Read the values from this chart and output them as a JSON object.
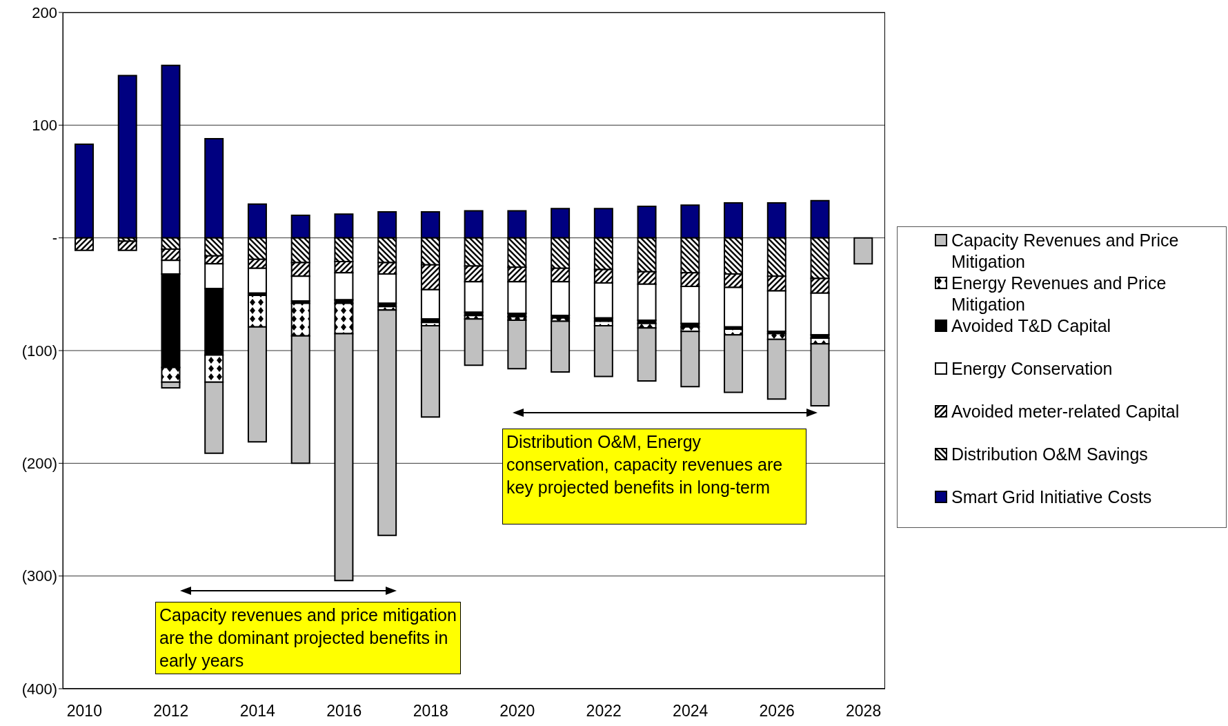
{
  "chart_data": {
    "type": "bar",
    "stacked": true,
    "categories": [
      "2010",
      null,
      "2012",
      null,
      "2014",
      null,
      "2016",
      null,
      "2018",
      null,
      "2020",
      null,
      "2022",
      null,
      "2024",
      null,
      "2026",
      null,
      "2028"
    ],
    "series": [
      {
        "name": "Smart Grid Initiative Costs",
        "color": "#000080",
        "values": [
          83,
          144,
          153,
          88,
          30,
          20,
          21,
          23,
          23,
          24,
          24,
          26,
          26,
          28,
          29,
          31,
          31,
          33,
          null
        ]
      },
      {
        "name": "Distribution O&M Savings",
        "color": "#000000",
        "values": [
          null,
          -3,
          -10,
          -16,
          -19,
          -22,
          -21,
          -22,
          -24,
          -25,
          -26,
          -27,
          -28,
          -30,
          -31,
          -32,
          -34,
          -36,
          null
        ]
      },
      {
        "name": "Avoided meter-related Capital",
        "color": "#000000",
        "values": [
          -11,
          -8,
          -10,
          -7,
          -8,
          -12,
          -10,
          -10,
          -22,
          -14,
          -13,
          -12,
          -12,
          -11,
          -12,
          -12,
          -13,
          -13,
          null
        ]
      },
      {
        "name": "Energy Conservation",
        "color": "#ffffff",
        "values": [
          null,
          null,
          -12,
          -22,
          -22,
          -22,
          -24,
          -26,
          -26,
          -27,
          -28,
          -30,
          -31,
          -32,
          -33,
          -35,
          -36,
          -37,
          null
        ]
      },
      {
        "name": "Avoided T&D Capital",
        "color": "#000000",
        "values": [
          null,
          null,
          -83,
          -59,
          -2,
          -2,
          -3,
          -3,
          -3,
          -3,
          -3,
          -2,
          -3,
          -3,
          -3,
          -2,
          -2,
          -3,
          null
        ]
      },
      {
        "name": "Energy Revenues and Price Mitigation",
        "color": "#000000",
        "values": [
          null,
          null,
          -13,
          -24,
          -28,
          -29,
          -27,
          -3,
          -3,
          -3,
          -3,
          -3,
          -4,
          -4,
          -4,
          -5,
          -5,
          -5,
          null
        ]
      },
      {
        "name": "Capacity Revenues and Price Mitigation",
        "color": "#c0c0c0",
        "values": [
          null,
          null,
          -5,
          -63,
          -102,
          -113,
          -219,
          -200,
          -81,
          -41,
          -43,
          -45,
          -45,
          -47,
          -49,
          -51,
          -53,
          -55,
          -23
        ]
      }
    ],
    "ylim": [
      -400,
      200
    ],
    "yticks": [
      {
        "value": -400,
        "label": "(400)"
      },
      {
        "value": -300,
        "label": "(300)"
      },
      {
        "value": -200,
        "label": "(200)"
      },
      {
        "value": -100,
        "label": "(100)"
      },
      {
        "value": 0,
        "label": "-"
      },
      100,
      200
    ],
    "grid": "y",
    "legend": "right",
    "annotations": [
      "Capacity revenues and price mitigation are the dominant projected benefits in early years",
      "Distribution O&M, Energy conservation, capacity revenues are key projected benefits in long-term"
    ]
  }
}
